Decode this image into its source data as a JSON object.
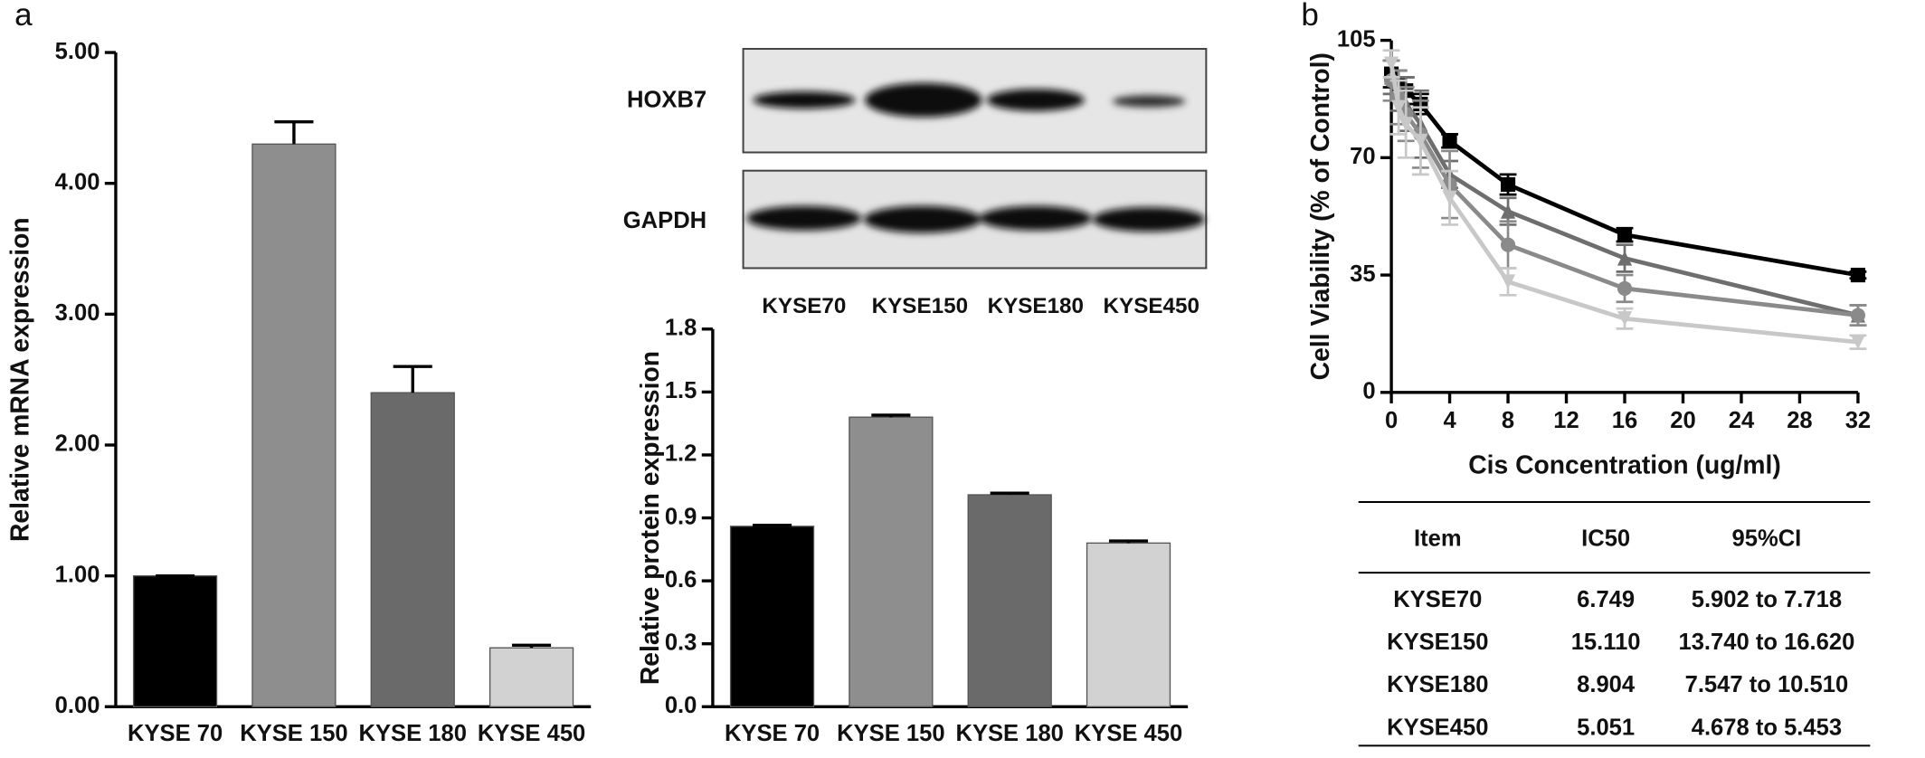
{
  "panel_labels": [
    "a",
    "b"
  ],
  "chart_data": [
    {
      "type": "bar",
      "ylabel": "Relative mRNA expression",
      "categories": [
        "KYSE 70",
        "KYSE 150",
        "KYSE 180",
        "KYSE 450"
      ],
      "values": [
        1.0,
        4.3,
        2.4,
        0.45
      ],
      "errors": [
        0,
        0.17,
        0.2,
        0.02
      ],
      "colors": [
        "#000000",
        "#8e8e8e",
        "#6a6a6a",
        "#d2d2d2"
      ],
      "ylim": [
        0,
        5
      ],
      "yticks": [
        {
          "value": 0,
          "label": "0.00"
        },
        {
          "value": 1,
          "label": "1.00"
        },
        {
          "value": 2,
          "label": "2.00"
        },
        {
          "value": 3,
          "label": "3.00"
        },
        {
          "value": 4,
          "label": "4.00"
        },
        {
          "value": 5,
          "label": "5.00"
        }
      ]
    },
    {
      "type": "bar",
      "ylabel": "Relative protein expression",
      "categories": [
        "KYSE 70",
        "KYSE 150",
        "KYSE 180",
        "KYSE 450"
      ],
      "values": [
        0.86,
        1.38,
        1.01,
        0.78
      ],
      "errors": [
        0.005,
        0.01,
        0.008,
        0.01
      ],
      "colors": [
        "#000000",
        "#8e8e8e",
        "#6a6a6a",
        "#d2d2d2"
      ],
      "ylim": [
        0,
        1.8
      ],
      "yticks": [
        {
          "value": 0,
          "label": "0.0"
        },
        0.3,
        0.6,
        0.9,
        1.2,
        1.5,
        1.8
      ]
    },
    {
      "type": "line",
      "xlabel": "Cis  Concentration (ug/ml)",
      "ylabel": "Cell Viability (% of Control)",
      "x": [
        0,
        0.5,
        1,
        2,
        4,
        8,
        16,
        32
      ],
      "series": [
        {
          "color": "#000000",
          "marker": "square",
          "values": [
            95,
            92,
            90,
            86,
            75,
            62,
            47,
            35
          ],
          "errors": [
            4,
            4,
            4,
            3,
            2,
            3,
            2,
            1
          ]
        },
        {
          "color": "#6e6e6e",
          "marker": "triangle",
          "values": [
            94,
            90,
            86,
            80,
            65,
            54,
            40,
            23
          ],
          "errors": [
            5,
            6,
            8,
            10,
            4,
            4,
            4,
            3
          ]
        },
        {
          "color": "#8a8a8a",
          "marker": "circle",
          "values": [
            93,
            88,
            83,
            77,
            62,
            44,
            31,
            23
          ],
          "errors": [
            6,
            8,
            8,
            10,
            10,
            7,
            4,
            3
          ]
        },
        {
          "color": "#c8c8c8",
          "marker": "triangle-down",
          "values": [
            98,
            85,
            80,
            75,
            58,
            33,
            22,
            15
          ],
          "errors": [
            4,
            8,
            10,
            10,
            8,
            4,
            3,
            2
          ]
        }
      ],
      "xlim": [
        0,
        32
      ],
      "xticks": [
        0,
        4,
        8,
        12,
        16,
        20,
        24,
        28,
        32
      ],
      "ylim": [
        0,
        105
      ],
      "yticks": [
        0,
        35,
        70,
        105
      ]
    }
  ],
  "blot": {
    "rows": [
      "HOXB7",
      "GAPDH"
    ],
    "lanes": [
      "KYSE70",
      "KYSE150",
      "KYSE180",
      "KYSE450"
    ]
  },
  "table": {
    "header": [
      "Item",
      "IC50",
      "95%CI"
    ],
    "rows": [
      [
        "KYSE70",
        "6.749",
        "5.902 to 7.718"
      ],
      [
        "KYSE150",
        "15.110",
        "13.740 to 16.620"
      ],
      [
        "KYSE180",
        "8.904",
        "7.547 to 10.510"
      ],
      [
        "KYSE450",
        "5.051",
        "4.678 to 5.453"
      ]
    ]
  }
}
